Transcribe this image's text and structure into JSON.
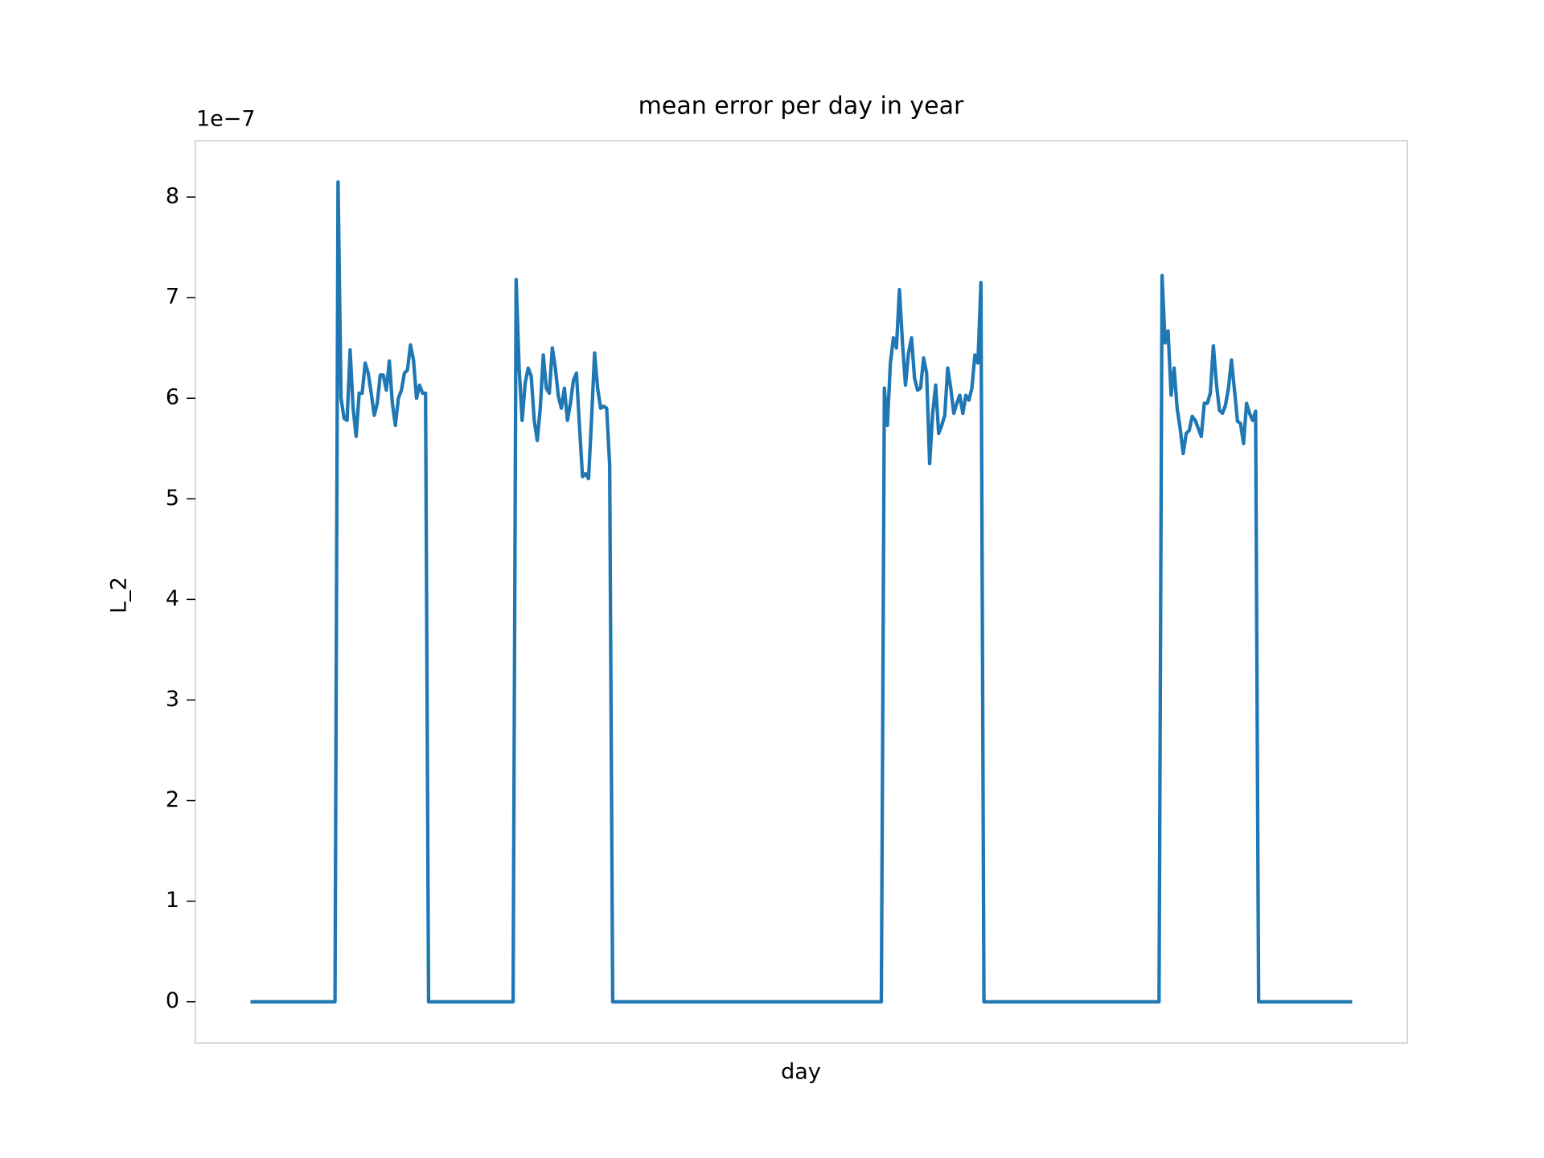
{
  "chart_data": {
    "type": "line",
    "title": "mean error per day in year",
    "xlabel": "day",
    "ylabel": "L_2",
    "y_offset_label": "1e−7",
    "x": [
      0,
      28,
      29,
      30,
      31,
      32,
      33,
      34,
      35,
      36,
      37,
      38,
      39,
      40,
      41,
      42,
      43,
      44,
      45,
      46,
      47,
      48,
      49,
      50,
      51,
      52,
      53,
      54,
      55,
      56,
      57,
      58,
      59,
      87,
      88,
      89,
      90,
      91,
      92,
      93,
      94,
      95,
      96,
      97,
      98,
      99,
      100,
      101,
      102,
      103,
      104,
      105,
      106,
      107,
      108,
      109,
      110,
      111,
      112,
      113,
      114,
      115,
      116,
      117,
      118,
      119,
      120,
      209,
      210,
      211,
      212,
      213,
      214,
      215,
      216,
      217,
      218,
      219,
      220,
      221,
      222,
      223,
      224,
      225,
      226,
      227,
      228,
      229,
      230,
      231,
      232,
      233,
      234,
      235,
      236,
      237,
      238,
      239,
      240,
      241,
      242,
      243,
      301,
      302,
      303,
      304,
      305,
      306,
      307,
      308,
      309,
      310,
      311,
      312,
      313,
      314,
      315,
      316,
      317,
      318,
      319,
      320,
      321,
      322,
      323,
      324,
      325,
      326,
      327,
      328,
      329,
      330,
      331,
      332,
      333,
      334,
      365
    ],
    "series": [
      {
        "name": "L_2",
        "color": "#1f77b4",
        "values": [
          0,
          0,
          8.15,
          6.0,
          5.8,
          5.78,
          6.48,
          5.9,
          5.62,
          6.05,
          6.05,
          6.35,
          6.25,
          6.05,
          5.83,
          5.95,
          6.23,
          6.23,
          6.08,
          6.37,
          5.95,
          5.73,
          6.0,
          6.08,
          6.25,
          6.28,
          6.53,
          6.38,
          6.0,
          6.13,
          6.05,
          6.05,
          0,
          0,
          7.18,
          6.3,
          5.78,
          6.15,
          6.3,
          6.22,
          5.78,
          5.58,
          5.9,
          6.43,
          6.1,
          6.05,
          6.5,
          6.3,
          6.02,
          5.9,
          6.1,
          5.78,
          5.95,
          6.18,
          6.25,
          5.72,
          5.22,
          5.25,
          5.2,
          5.8,
          6.45,
          6.1,
          5.9,
          5.92,
          5.9,
          5.33,
          0,
          0,
          6.1,
          5.73,
          6.35,
          6.6,
          6.5,
          7.08,
          6.55,
          6.13,
          6.45,
          6.6,
          6.2,
          6.08,
          6.1,
          6.4,
          6.25,
          5.35,
          5.85,
          6.13,
          5.65,
          5.73,
          5.83,
          6.3,
          6.1,
          5.85,
          5.95,
          6.03,
          5.85,
          6.03,
          5.98,
          6.1,
          6.43,
          6.35,
          7.15,
          0,
          0,
          7.22,
          6.55,
          6.67,
          6.03,
          6.3,
          5.9,
          5.7,
          5.45,
          5.65,
          5.68,
          5.82,
          5.78,
          5.7,
          5.62,
          5.95,
          5.95,
          6.05,
          6.52,
          6.15,
          5.88,
          5.85,
          5.93,
          6.1,
          6.38,
          6.08,
          5.77,
          5.75,
          5.55,
          5.95,
          5.85,
          5.78,
          5.87,
          0,
          0
        ]
      }
    ],
    "xlim": [
      -18.25,
      383.25
    ],
    "ylim": [
      -0.41,
      8.56
    ],
    "yticks": [
      0,
      1,
      2,
      3,
      4,
      5,
      6,
      7,
      8
    ],
    "grid": false
  }
}
